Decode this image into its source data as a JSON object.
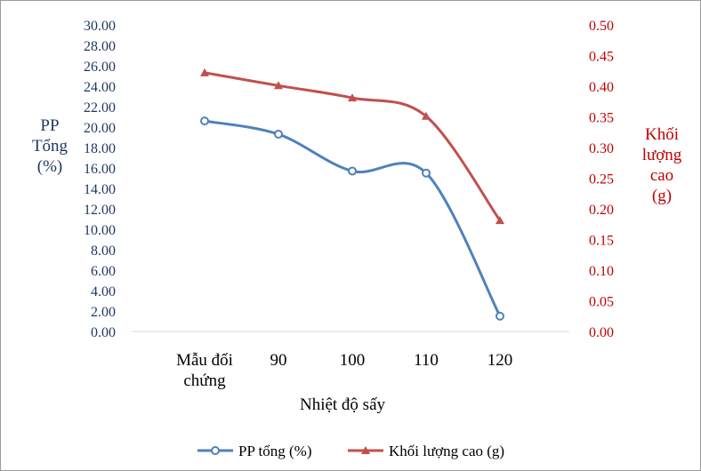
{
  "chart_data": {
    "type": "line",
    "title": "",
    "xlabel": "Nhiệt độ sấy",
    "categories": [
      [
        "Mẫu đối",
        "chứng"
      ],
      [
        "90"
      ],
      [
        "100"
      ],
      [
        "110"
      ],
      [
        "120"
      ]
    ],
    "y_left": {
      "label": [
        "PP",
        "Tổng",
        "(%)"
      ],
      "range": [
        0,
        30
      ],
      "step": 2,
      "decimals": 2,
      "color": "#1f3864"
    },
    "y_right": {
      "label": [
        "Khối",
        "lượng",
        "cao",
        "(g)"
      ],
      "range": [
        0,
        0.5
      ],
      "step": 0.05,
      "decimals": 2,
      "color": "#c00000"
    },
    "series": [
      {
        "name": "PP tổng (%)",
        "axis": "left",
        "color": "#4f81bd",
        "marker": "circle",
        "values": [
          20.6,
          19.3,
          15.7,
          15.5,
          1.5
        ]
      },
      {
        "name": "Khối lượng cao (g)",
        "axis": "right",
        "color": "#c0504d",
        "marker": "triangle",
        "values": [
          0.422,
          0.401,
          0.381,
          0.351,
          0.181
        ]
      }
    ],
    "legend_position": "bottom",
    "grid": false
  }
}
